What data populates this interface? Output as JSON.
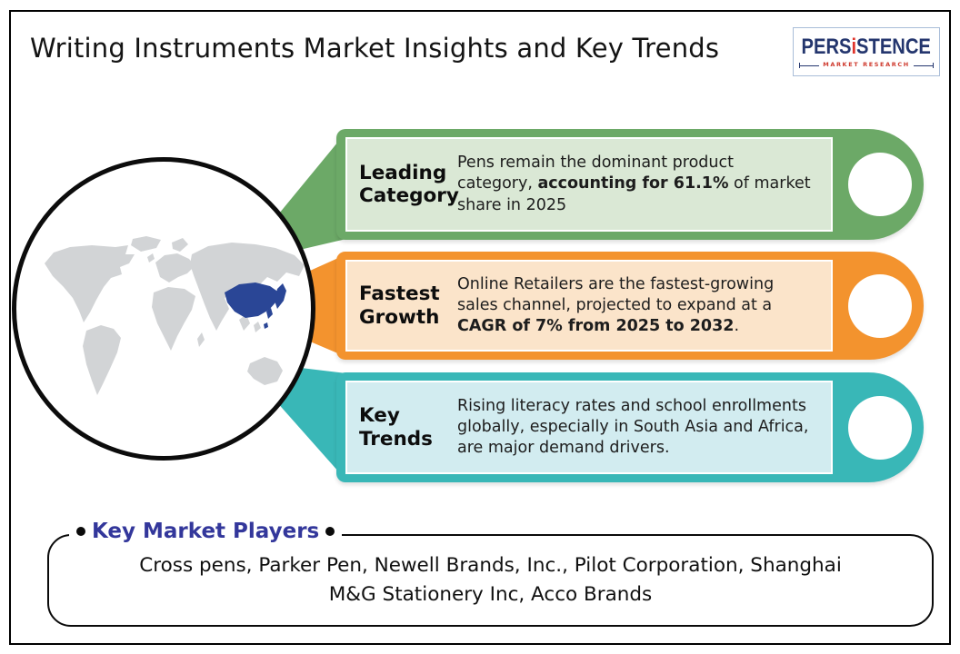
{
  "header": {
    "title": "Writing Instruments Market Insights and Key Trends"
  },
  "logo": {
    "brand_pre": "PERS",
    "brand_i": "i",
    "brand_post": "STENCE",
    "tagline": "MARKET RESEARCH",
    "brand_color": "#24366e",
    "accent_color": "#e0342b"
  },
  "globe": {
    "map_base_color": "#d2d4d6",
    "highlight_color": "#2a4696",
    "highlighted_region": "east-asia"
  },
  "banners": [
    {
      "label": "Leading\nCategory",
      "theme": {
        "main": "#6ca967",
        "panel": "#dae8d5"
      },
      "body": [
        {
          "text": "Pens remain the dominant product\ncategory, "
        },
        {
          "text": "accounting for 61.1%",
          "bold": true
        },
        {
          "text": " of market\nshare in 2025"
        }
      ]
    },
    {
      "label": "Fastest\nGrowth",
      "theme": {
        "main": "#f3932e",
        "panel": "#fbe4ca"
      },
      "body": [
        {
          "text": "Online Retailers are the fastest-growing\nsales channel, projected to expand at a\n"
        },
        {
          "text": "CAGR of 7% from 2025 to 2032",
          "bold": true
        },
        {
          "text": "."
        }
      ]
    },
    {
      "label": "Key\nTrends",
      "theme": {
        "main": "#39b7b7",
        "panel": "#d2ecf0"
      },
      "body": [
        {
          "text": "Rising literacy rates and school enrollments\nglobally, especially in South Asia and Africa,\nare major demand drivers."
        }
      ]
    }
  ],
  "players": {
    "title": "Key Market Players",
    "title_color": "#33379b",
    "companies": "Cross pens, Parker Pen,  Newell Brands, Inc., Pilot Corporation, Shanghai\nM&G Stationery Inc, Acco Brands"
  }
}
